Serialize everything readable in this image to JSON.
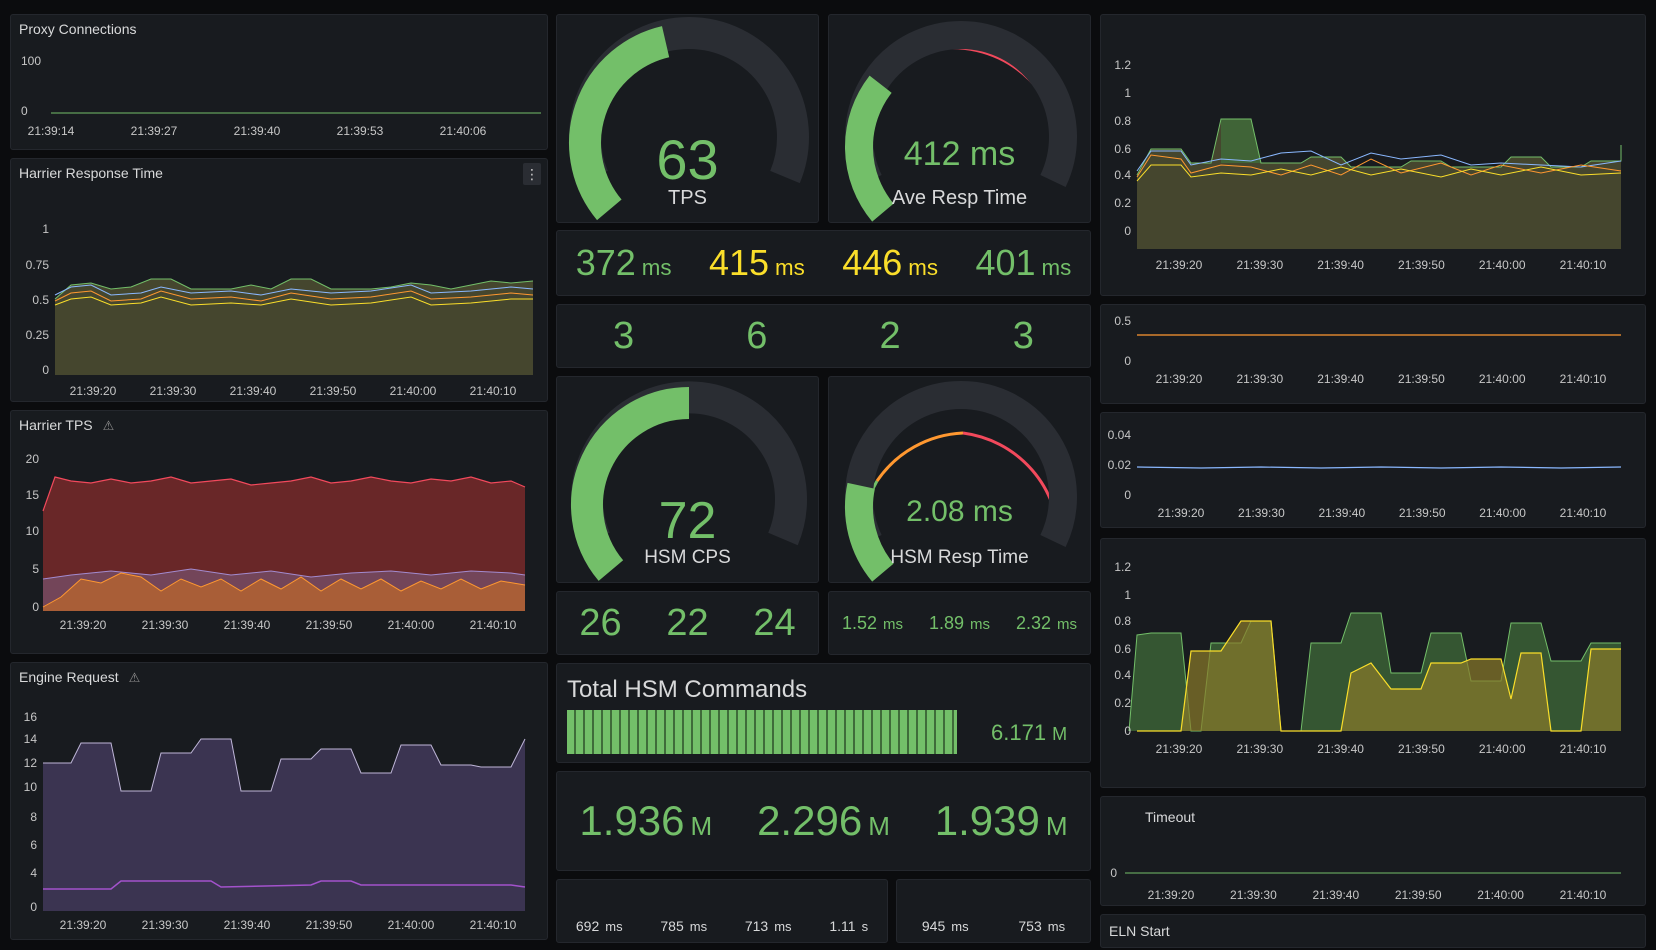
{
  "colors": {
    "green": "#73bf69",
    "yellow": "#fade2a",
    "red": "#f2495c",
    "orange": "#ff9830",
    "blue": "#8ab8ff",
    "purple": "#a38bd0",
    "bg": "#181b1f"
  },
  "proxy": {
    "title": "Proxy Connections",
    "yticks": [
      "100",
      "0"
    ],
    "xticks": [
      "21:39:14",
      "21:39:27",
      "21:39:40",
      "21:39:53",
      "21:40:06"
    ]
  },
  "harrier_resp": {
    "title": "Harrier Response Time",
    "menu_icon": "kebab-menu-icon",
    "yticks": [
      "1",
      "0.75",
      "0.5",
      "0.25",
      "0"
    ],
    "xticks": [
      "21:39:20",
      "21:39:30",
      "21:39:40",
      "21:39:50",
      "21:40:00",
      "21:40:10"
    ]
  },
  "harrier_tps": {
    "title": "Harrier TPS",
    "icon": "warning-icon",
    "yticks": [
      "20",
      "15",
      "10",
      "5",
      "0"
    ],
    "xticks": [
      "21:39:20",
      "21:39:30",
      "21:39:40",
      "21:39:50",
      "21:40:00",
      "21:40:10"
    ]
  },
  "engine": {
    "title": "Engine Request",
    "icon": "warning-icon",
    "yticks": [
      "16",
      "14",
      "12",
      "10",
      "8",
      "6",
      "4",
      "0"
    ],
    "xticks": [
      "21:39:20",
      "21:39:30",
      "21:39:40",
      "21:39:50",
      "21:40:00",
      "21:40:10"
    ]
  },
  "gauge_tps": {
    "value": "63",
    "label": "TPS",
    "fill": 0.45
  },
  "gauge_resp": {
    "value": "412 ms",
    "label": "Ave Resp Time",
    "fill": 0.3
  },
  "gauge_hsm": {
    "value": "72",
    "label": "HSM CPS",
    "fill": 0.5
  },
  "gauge_hsmresp": {
    "value": "2.08 ms",
    "label": "HSM Resp Time",
    "fill": 0.2
  },
  "resp_stats": [
    {
      "value": "372",
      "unit": "ms",
      "color": "green"
    },
    {
      "value": "415",
      "unit": "ms",
      "color": "yellow"
    },
    {
      "value": "446",
      "unit": "ms",
      "color": "yellow"
    },
    {
      "value": "401",
      "unit": "ms",
      "color": "green"
    }
  ],
  "count_stats": [
    "3",
    "6",
    "2",
    "3"
  ],
  "hsm_counts": [
    "26",
    "22",
    "24"
  ],
  "hsm_times": [
    {
      "value": "1.52",
      "unit": "ms"
    },
    {
      "value": "1.89",
      "unit": "ms"
    },
    {
      "value": "2.32",
      "unit": "ms"
    }
  ],
  "total_hsm": {
    "title": "Total HSM Commands",
    "value": "6.171",
    "unit": "M",
    "fill": 0.95
  },
  "millions": [
    {
      "value": "1.936",
      "unit": "M"
    },
    {
      "value": "2.296",
      "unit": "M"
    },
    {
      "value": "1.939",
      "unit": "M"
    }
  ],
  "bottom_left_times": [
    {
      "value": "692",
      "unit": "ms"
    },
    {
      "value": "785",
      "unit": "ms"
    },
    {
      "value": "713",
      "unit": "ms"
    },
    {
      "value": "1.11",
      "unit": "s"
    }
  ],
  "bottom_right_times": [
    {
      "value": "945",
      "unit": "ms"
    },
    {
      "value": "753",
      "unit": "ms"
    }
  ],
  "right1": {
    "yticks": [
      "1.2",
      "1",
      "0.8",
      "0.6",
      "0.4",
      "0.2",
      "0"
    ],
    "xticks": [
      "21:39:20",
      "21:39:30",
      "21:39:40",
      "21:39:50",
      "21:40:00",
      "21:40:10"
    ]
  },
  "right2": {
    "yticks": [
      "0.5",
      "0"
    ],
    "xticks": [
      "21:39:20",
      "21:39:30",
      "21:39:40",
      "21:39:50",
      "21:40:00",
      "21:40:10"
    ]
  },
  "right3": {
    "yticks": [
      "0.04",
      "0.02",
      "0"
    ],
    "xticks": [
      "21:39:20",
      "21:39:30",
      "21:39:40",
      "21:39:50",
      "21:40:00",
      "21:40:10"
    ]
  },
  "right4": {
    "yticks": [
      "1.2",
      "1",
      "0.8",
      "0.6",
      "0.4",
      "0.2",
      "0"
    ],
    "xticks": [
      "21:39:20",
      "21:39:30",
      "21:39:40",
      "21:39:50",
      "21:40:00",
      "21:40:10"
    ]
  },
  "timeout": {
    "title": "Timeout",
    "yticks": [
      "0"
    ],
    "xticks": [
      "21:39:20",
      "21:39:30",
      "21:39:40",
      "21:39:50",
      "21:40:00",
      "21:40:10"
    ]
  },
  "eln": {
    "title": "ELN Start"
  }
}
